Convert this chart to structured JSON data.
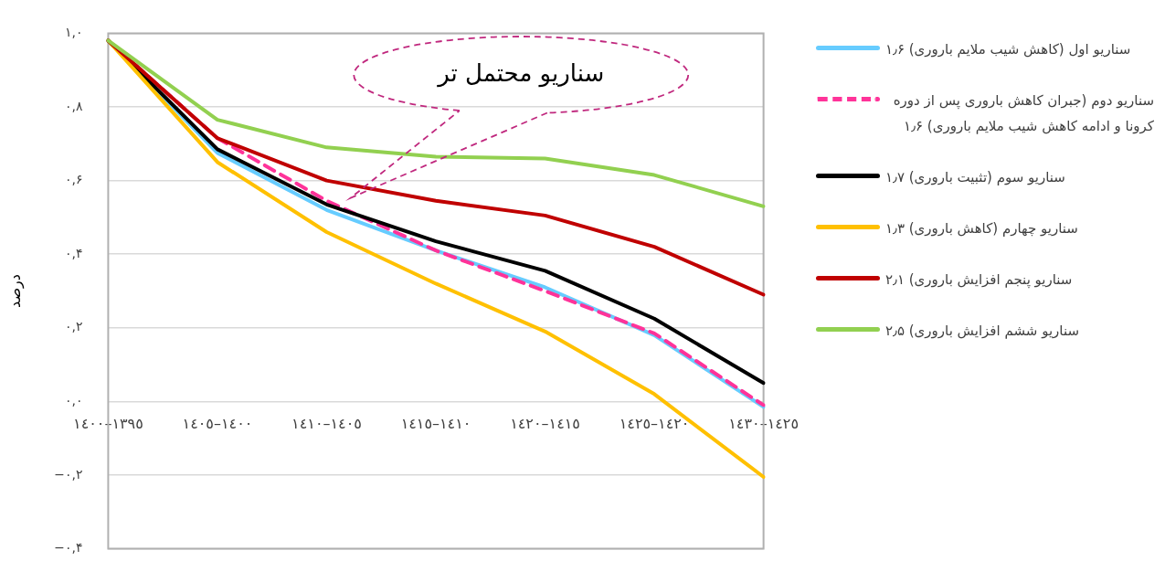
{
  "chart_data": {
    "type": "line",
    "ylabel": "درصد",
    "categories": [
      "١٣٩٥–١٤٠٠",
      "١٤٠٠–١٤٠٥",
      "١٤٠٥–١٤١٠",
      "١٤١٠–١٤١٥",
      "١٤١٥–١٤٢٠",
      "١٤٢٠–١٤٢٥",
      "١٤٢٥–١٤٣٠"
    ],
    "series": [
      {
        "name": "سناریو اول (کاهش شیب ملایم باروری) ۱٫۶",
        "color": "#66ccff",
        "values": [
          0.98,
          0.675,
          0.52,
          0.41,
          0.31,
          0.18,
          -0.015
        ]
      },
      {
        "name": "سناریو دوم (جبران کاهش باروری پس از دوره کرونا و ادامه کاهش شیب ملایم باروری) ۱٫۶",
        "color": "#ff3399",
        "line_style": "dashed",
        "values": [
          0.98,
          0.715,
          0.545,
          0.41,
          0.3,
          0.185,
          -0.01
        ]
      },
      {
        "name": "سناریو سوم (تثبیت باروری) ۱٫۷",
        "color": "#000000",
        "values": [
          0.98,
          0.685,
          0.535,
          0.435,
          0.355,
          0.225,
          0.05
        ]
      },
      {
        "name": "سناریو چهارم (کاهش باروری) ۱٫۳",
        "color": "#ffc000",
        "values": [
          0.98,
          0.65,
          0.46,
          0.32,
          0.19,
          0.02,
          -0.205
        ]
      },
      {
        "name": "سناریو پنجم افزایش باروری) ۲٫۱",
        "color": "#c00000",
        "values": [
          0.98,
          0.715,
          0.6,
          0.545,
          0.505,
          0.42,
          0.29
        ]
      },
      {
        "name": "سناریو ششم افزایش باروری) ۲٫۵",
        "color": "#92d050",
        "values": [
          0.98,
          0.765,
          0.69,
          0.665,
          0.66,
          0.615,
          0.53
        ]
      }
    ],
    "ylim": [
      -0.4,
      1.0
    ],
    "yticks": [
      {
        "value": -0.4,
        "label": "−۰,۴"
      },
      {
        "value": -0.2,
        "label": "−۰,۲"
      },
      {
        "value": 0,
        "label": "۰,۰"
      },
      {
        "value": 0.2,
        "label": "۰,۲"
      },
      {
        "value": 0.4,
        "label": "۰,۴"
      },
      {
        "value": 0.6,
        "label": "۰,۶"
      },
      {
        "value": 0.8,
        "label": "۰,۸"
      },
      {
        "value": 1.0,
        "label": "۱,۰"
      }
    ],
    "grid": "y",
    "legend": "right",
    "marker": "none",
    "line_style": "solid",
    "annotations": [
      "سناریو محتمل تر"
    ]
  }
}
